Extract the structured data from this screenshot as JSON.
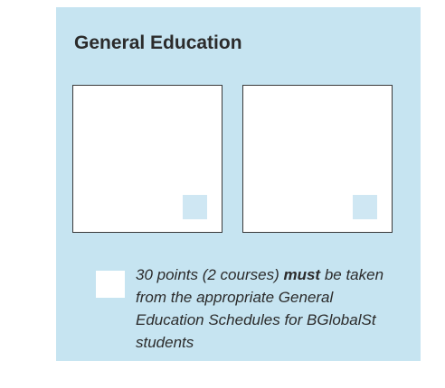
{
  "title": "General Education",
  "note": {
    "before": "30 points (2 courses) ",
    "emphasis": "must",
    "after": " be taken from the appropriate General Education Schedules for BGlobalSt students"
  }
}
